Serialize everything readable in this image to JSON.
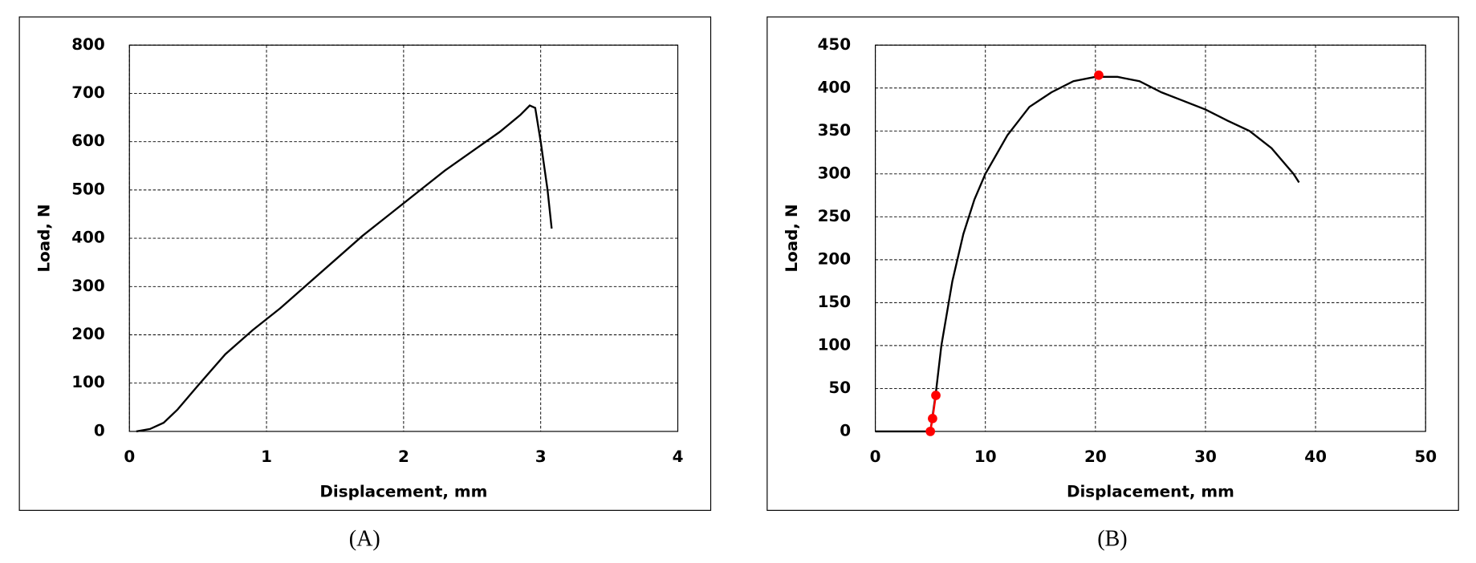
{
  "chart_data": [
    {
      "type": "line",
      "caption": "(A)",
      "xlabel": "Displacement,  mm",
      "ylabel": "Load, N",
      "xlim": [
        0,
        4
      ],
      "xticks": [
        0,
        1,
        2,
        3,
        4
      ],
      "ylim": [
        0,
        800
      ],
      "yticks": [
        0,
        100,
        200,
        300,
        400,
        500,
        600,
        700,
        800
      ],
      "grid": true,
      "series": [
        {
          "color": "#000000",
          "markers": false,
          "line": true,
          "x": [
            0.05,
            0.15,
            0.25,
            0.35,
            0.5,
            0.7,
            0.9,
            1.1,
            1.3,
            1.5,
            1.7,
            1.9,
            2.1,
            2.3,
            2.5,
            2.7,
            2.85,
            2.92,
            2.96,
            3.0,
            3.05,
            3.08
          ],
          "values": [
            0,
            5,
            18,
            45,
            95,
            160,
            210,
            255,
            305,
            355,
            405,
            450,
            495,
            540,
            580,
            620,
            655,
            675,
            670,
            600,
            500,
            420
          ]
        }
      ]
    },
    {
      "type": "line",
      "caption": "(B)",
      "xlabel": "Displacement,  mm",
      "ylabel": "Load, N",
      "xlim": [
        0,
        50
      ],
      "xticks": [
        0,
        10,
        20,
        30,
        40,
        50
      ],
      "ylim": [
        0,
        450
      ],
      "yticks": [
        0,
        50,
        100,
        150,
        200,
        250,
        300,
        350,
        400,
        450
      ],
      "grid": true,
      "series": [
        {
          "color": "#000000",
          "markers": false,
          "line": true,
          "x": [
            0,
            5,
            5.5,
            6,
            7,
            8,
            9,
            10,
            12,
            14,
            16,
            18,
            20,
            22,
            24,
            26,
            28,
            30,
            32,
            34,
            36,
            38,
            38.5
          ],
          "values": [
            0,
            0,
            45,
            100,
            175,
            230,
            270,
            300,
            345,
            378,
            395,
            408,
            413,
            413,
            408,
            395,
            385,
            375,
            362,
            350,
            330,
            300,
            290
          ]
        },
        {
          "color": "#ff0000",
          "markers": true,
          "line": true,
          "x": [
            5,
            5.2,
            5.5
          ],
          "values": [
            0,
            15,
            42
          ]
        },
        {
          "color": "#ff0000",
          "markers": true,
          "line": false,
          "x": [
            20.3
          ],
          "values": [
            415
          ]
        }
      ]
    }
  ]
}
